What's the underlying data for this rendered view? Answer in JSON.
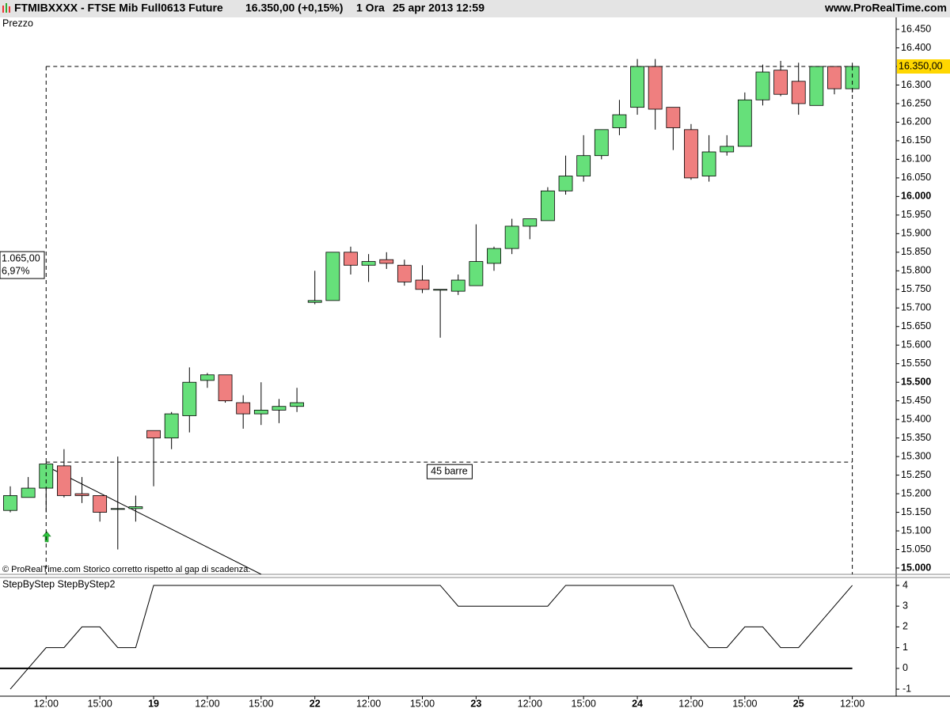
{
  "header": {
    "symbol": "FTMIBXXXX - FTSE Mib Full0613 Future",
    "quote": "16.350,00 (+0,15%)",
    "interval": "1 Ora",
    "datetime": "25 apr 2013 12:59",
    "site": "www.ProRealTime.com"
  },
  "chart_data": [
    {
      "type": "candlestick",
      "title": "Prezzo",
      "footnote": "© ProRealTime.com  Storico corretto rispetto al gap di scadenza.",
      "up_color": "#66e07a",
      "down_color": "#ef7f7f",
      "categories": [
        null,
        null,
        "12:00",
        null,
        null,
        "15:00",
        null,
        null,
        "19",
        null,
        null,
        "12:00",
        null,
        null,
        "15:00",
        null,
        null,
        "22",
        null,
        null,
        "12:00",
        null,
        null,
        "15:00",
        null,
        null,
        "23",
        null,
        null,
        "12:00",
        null,
        null,
        "15:00",
        null,
        null,
        "24",
        null,
        null,
        "12:00",
        null,
        null,
        "15:00",
        null,
        null,
        "25",
        null,
        null,
        "12:00"
      ],
      "open": [
        15155,
        15190,
        15215,
        15275,
        15200,
        15195,
        15160,
        15160,
        15370,
        15350,
        15410,
        15505,
        15520,
        15445,
        15415,
        15425,
        15435,
        15715,
        15720,
        15850,
        15815,
        15830,
        15815,
        15775,
        15750,
        15745,
        15760,
        15820,
        15860,
        15920,
        15935,
        16015,
        16055,
        16110,
        16185,
        16240,
        16350,
        16240,
        16180,
        16055,
        16120,
        16135,
        16260,
        16340,
        16310,
        16245,
        16350,
        16290
      ],
      "high": [
        15220,
        15245,
        15285,
        15320,
        15245,
        15195,
        15300,
        15195,
        15370,
        15420,
        15540,
        15525,
        15520,
        15465,
        15500,
        15455,
        15485,
        15800,
        15850,
        15865,
        15845,
        15850,
        15830,
        15815,
        15750,
        15790,
        15925,
        15865,
        15940,
        15940,
        16025,
        16110,
        16165,
        16180,
        16260,
        16370,
        16370,
        16240,
        16195,
        16165,
        16165,
        16280,
        16355,
        16365,
        16360,
        16350,
        16350,
        16360
      ],
      "low": [
        15150,
        15190,
        15150,
        15190,
        15175,
        15125,
        15050,
        15125,
        15220,
        15320,
        15365,
        15485,
        15445,
        15375,
        15385,
        15390,
        15420,
        15710,
        15720,
        15790,
        15770,
        15805,
        15760,
        15740,
        15620,
        15735,
        15760,
        15800,
        15845,
        15885,
        15935,
        16005,
        16040,
        16100,
        16165,
        16220,
        16180,
        16125,
        16045,
        16040,
        16110,
        16135,
        16245,
        16270,
        16220,
        16245,
        16275,
        16280
      ],
      "close": [
        15195,
        15215,
        15280,
        15195,
        15195,
        15150,
        15160,
        15165,
        15350,
        15415,
        15500,
        15520,
        15450,
        15415,
        15425,
        15435,
        15445,
        15720,
        15850,
        15815,
        15825,
        15820,
        15770,
        15750,
        15750,
        15775,
        15825,
        15860,
        15920,
        15940,
        16015,
        16055,
        16110,
        16180,
        16220,
        16350,
        16235,
        16185,
        16050,
        16120,
        16135,
        16260,
        16335,
        16275,
        16250,
        16350,
        16290,
        16350
      ],
      "ylim": [
        14983,
        16482
      ],
      "yticks": [
        {
          "value": 15000,
          "label": "15.000"
        },
        {
          "value": 15050,
          "label": "15.050"
        },
        {
          "value": 15100,
          "label": "15.100"
        },
        {
          "value": 15150,
          "label": "15.150"
        },
        {
          "value": 15200,
          "label": "15.200"
        },
        {
          "value": 15250,
          "label": "15.250"
        },
        {
          "value": 15300,
          "label": "15.300"
        },
        {
          "value": 15350,
          "label": "15.350"
        },
        {
          "value": 15400,
          "label": "15.400"
        },
        {
          "value": 15450,
          "label": "15.450"
        },
        {
          "value": 15500,
          "label": "15.500"
        },
        {
          "value": 15550,
          "label": "15.550"
        },
        {
          "value": 15600,
          "label": "15.600"
        },
        {
          "value": 15650,
          "label": "15.650"
        },
        {
          "value": 15700,
          "label": "15.700"
        },
        {
          "value": 15750,
          "label": "15.750"
        },
        {
          "value": 15800,
          "label": "15.800"
        },
        {
          "value": 15850,
          "label": "15.850"
        },
        {
          "value": 15900,
          "label": "15.900"
        },
        {
          "value": 15950,
          "label": "15.950"
        },
        {
          "value": 16000,
          "label": "16.000"
        },
        {
          "value": 16050,
          "label": "16.050"
        },
        {
          "value": 16100,
          "label": "16.100"
        },
        {
          "value": 16150,
          "label": "16.150"
        },
        {
          "value": 16200,
          "label": "16.200"
        },
        {
          "value": 16250,
          "label": "16.250"
        },
        {
          "value": 16300,
          "label": "16.300"
        },
        {
          "value": 16350,
          "label": "16.350"
        },
        {
          "value": 16400,
          "label": "16.400"
        },
        {
          "value": 16450,
          "label": "16.450"
        }
      ],
      "last_price": {
        "value": 16350,
        "label": "16.350,00"
      },
      "last_price_color": "#ffd700",
      "measure": {
        "low": 15285,
        "high": 16350,
        "change": {
          "value": 1065,
          "label": "1.065,00"
        },
        "change_pct": {
          "value": 6.97,
          "label": "6,97%"
        },
        "bars": {
          "value": 45,
          "label": "45 barre"
        }
      }
    },
    {
      "type": "line",
      "title": "StepByStep StepByStep2",
      "color": "#000000",
      "values": [
        -1,
        0,
        1,
        1,
        2,
        2,
        1,
        1,
        4,
        4,
        4,
        4,
        4,
        4,
        4,
        4,
        4,
        4,
        4,
        4,
        4,
        4,
        4,
        4,
        4,
        3,
        3,
        3,
        3,
        3,
        3,
        4,
        4,
        4,
        4,
        4,
        4,
        4,
        2,
        1,
        1,
        2,
        2,
        1,
        1,
        2,
        3,
        4
      ],
      "ylim": [
        -1.34,
        4.38
      ],
      "yticks": [
        -1,
        0,
        1,
        2,
        3,
        4
      ],
      "zero_line": 0
    }
  ]
}
